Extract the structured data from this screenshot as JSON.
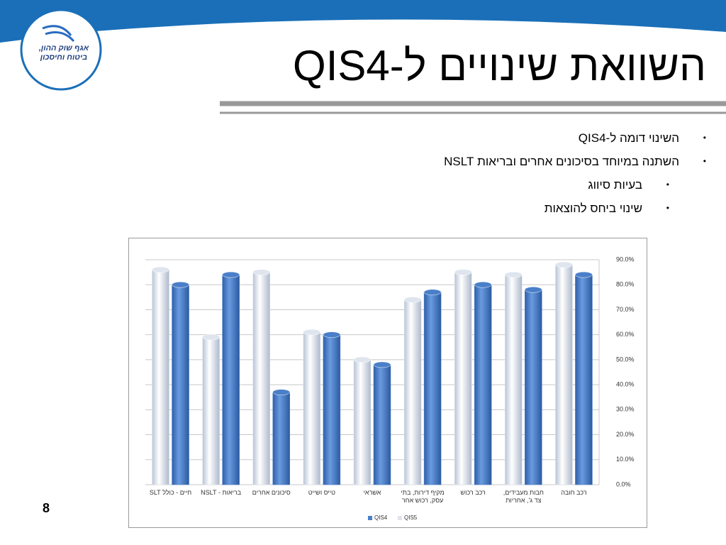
{
  "slide": {
    "title": "השוואת שינויים ל-QIS4",
    "logo": [
      "אגף שוק ההון,",
      "ביטוח וחיסכון"
    ],
    "bullets": [
      {
        "text": "השינוי דומה ל-QIS4",
        "level": 0
      },
      {
        "text": "השתנה במיוחד בסיכונים אחרים ובריאות NSLT",
        "level": 0
      },
      {
        "text": "בעיות סיווג",
        "level": 1
      },
      {
        "text": "שינוי ביחס להוצאות",
        "level": 1
      }
    ],
    "page_number": "8"
  },
  "chart_data": {
    "type": "bar",
    "categories": [
      "חיים - כולל SLT",
      "בריאות - NSLT",
      "סיכונים אחרים",
      "טייס ושייט",
      "אשראי",
      "מקיף דירות, בתי עסק, רכוש אחר",
      "רכב רכוש",
      "חבות מעבידים, צד ג', אחריות",
      "רכב חובה"
    ],
    "series": [
      {
        "name": "QIS4",
        "color": "#4a7fc9",
        "values": [
          80,
          84,
          37,
          60,
          48,
          77,
          80,
          78,
          84
        ]
      },
      {
        "name": "QIS5",
        "color": "#dfe5ee",
        "values": [
          86,
          59,
          85,
          61,
          50,
          74,
          85,
          84,
          88
        ]
      }
    ],
    "ylim": [
      0,
      90
    ],
    "yticks": [
      {
        "value": 0,
        "label": "0.0%"
      },
      {
        "value": 10,
        "label": "10.0%"
      },
      {
        "value": 20,
        "label": "20.0%"
      },
      {
        "value": 30,
        "label": "30.0%"
      },
      {
        "value": 40,
        "label": "40.0%"
      },
      {
        "value": 50,
        "label": "50.0%"
      },
      {
        "value": 60,
        "label": "60.0%"
      },
      {
        "value": 70,
        "label": "70.0%"
      },
      {
        "value": 80,
        "label": "80.0%"
      },
      {
        "value": 90,
        "label": "90.0%"
      }
    ],
    "grid": true
  }
}
